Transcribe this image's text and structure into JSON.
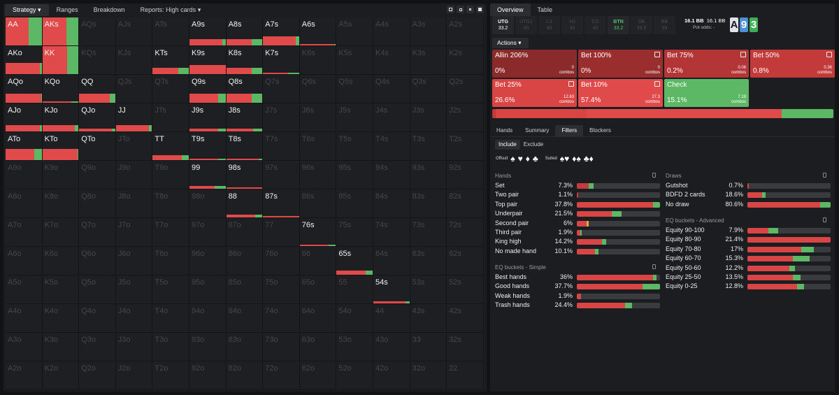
{
  "left_tabs": [
    "Strategy",
    "Ranges",
    "Breakdown",
    "Reports: High cards"
  ],
  "right_tabs": [
    "Overview",
    "Table"
  ],
  "positions": [
    {
      "name": "UTG",
      "stack": "33.2",
      "state": "hero"
    },
    {
      "name": "UTG1",
      "stack": "40",
      "state": "dim"
    },
    {
      "name": "LJ",
      "stack": "40",
      "state": "dim"
    },
    {
      "name": "HJ",
      "stack": "40",
      "state": "dim"
    },
    {
      "name": "CO",
      "stack": "40",
      "state": "dim"
    },
    {
      "name": "BTN",
      "stack": "33.2",
      "state": "btn"
    },
    {
      "name": "SB",
      "stack": "39.5",
      "state": "dim"
    },
    {
      "name": "BB",
      "stack": "39",
      "state": "dim"
    }
  ],
  "effective": {
    "stack1": "16.1 BB",
    "stack2": "16.1 BB",
    "pot_odds": "Pot odds: -"
  },
  "board": [
    {
      "rank": "A",
      "bg": "#dfe3ea"
    },
    {
      "rank": "9",
      "bg": "#4f8fd6"
    },
    {
      "rank": "3",
      "bg": "#3fae54"
    }
  ],
  "actions_label": "Actions",
  "actions": [
    {
      "name": "Allin 206%",
      "pct": "0%",
      "combos": "0",
      "combos_label": "combos",
      "color": "#8a2a2a",
      "icon": false
    },
    {
      "name": "Bet 100%",
      "pct": "0%",
      "combos": "0",
      "combos_label": "combos",
      "color": "#9a2e2e",
      "icon": true
    },
    {
      "name": "Bet 75%",
      "pct": "0.2%",
      "combos": "0.08",
      "combos_label": "combos",
      "color": "#b33535",
      "icon": true
    },
    {
      "name": "Bet 50%",
      "pct": "0.8%",
      "combos": "0.36",
      "combos_label": "combos",
      "color": "#c23a3a",
      "icon": true
    },
    {
      "name": "Bet 25%",
      "pct": "26.6%",
      "combos": "12.63",
      "combos_label": "combos",
      "color": "#d94444",
      "icon": true
    },
    {
      "name": "Bet 10%",
      "pct": "57.4%",
      "combos": "27.3",
      "combos_label": "combos",
      "color": "#e14a4a",
      "icon": true
    },
    {
      "name": "Check",
      "pct": "15.1%",
      "combos": "7.19",
      "combos_label": "combos",
      "color": "#5db866",
      "icon": false
    }
  ],
  "summary_bar": [
    {
      "c": "#b33535",
      "v": 0.2
    },
    {
      "c": "#c23a3a",
      "v": 0.8
    },
    {
      "c": "#d94444",
      "v": 26.6
    },
    {
      "c": "#e14a4a",
      "v": 57.4
    },
    {
      "c": "#5db866",
      "v": 15.1
    }
  ],
  "lower_tabs": [
    "Hands",
    "Summary",
    "Filters",
    "Blockers"
  ],
  "include_exclude": [
    "Include",
    "Exclude"
  ],
  "suit_labels": {
    "offsuit": "Offsuit",
    "suited": "Suited"
  },
  "groups": {
    "hands": "Hands",
    "eq_simple": "EQ buckets - Simple",
    "draws": "Draws",
    "eq_adv": "EQ buckets - Advanced"
  },
  "hands_rows": [
    {
      "label": "Set",
      "value": "7.3%",
      "bar": [
        [
          "#c43b3b",
          0.14
        ],
        [
          "#5db866",
          0.06
        ]
      ]
    },
    {
      "label": "Two pair",
      "value": "1.1%",
      "bar": [
        [
          "#c43b3b",
          0.02
        ]
      ]
    },
    {
      "label": "Top pair",
      "value": "37.8%",
      "bar": [
        [
          "#d94444",
          0.92
        ],
        [
          "#5db866",
          0.08
        ]
      ]
    },
    {
      "label": "Underpair",
      "value": "21.5%",
      "bar": [
        [
          "#d94444",
          0.42
        ],
        [
          "#5db866",
          0.12
        ]
      ]
    },
    {
      "label": "Second pair",
      "value": "6%",
      "bar": [
        [
          "#d94444",
          0.12
        ],
        [
          "#e8a33a",
          0.02
        ]
      ]
    },
    {
      "label": "Third pair",
      "value": "1.9%",
      "bar": [
        [
          "#d94444",
          0.04
        ],
        [
          "#5db866",
          0.02
        ]
      ]
    },
    {
      "label": "King high",
      "value": "14.2%",
      "bar": [
        [
          "#d94444",
          0.3
        ],
        [
          "#5db866",
          0.05
        ]
      ]
    },
    {
      "label": "No made hand",
      "value": "10.1%",
      "bar": [
        [
          "#d94444",
          0.22
        ],
        [
          "#5db866",
          0.04
        ]
      ]
    }
  ],
  "eq_simple_rows": [
    {
      "label": "Best hands",
      "value": "36%",
      "bar": [
        [
          "#d94444",
          0.92
        ],
        [
          "#5db866",
          0.04
        ]
      ]
    },
    {
      "label": "Good hands",
      "value": "37.7%",
      "bar": [
        [
          "#d94444",
          0.79
        ],
        [
          "#5db866",
          0.21
        ]
      ]
    },
    {
      "label": "Weak hands",
      "value": "1.9%",
      "bar": [
        [
          "#d94444",
          0.05
        ]
      ]
    },
    {
      "label": "Trash hands",
      "value": "24.4%",
      "bar": [
        [
          "#d94444",
          0.58
        ],
        [
          "#5db866",
          0.08
        ]
      ]
    }
  ],
  "draws_rows": [
    {
      "label": "Gutshot",
      "value": "0.7%",
      "bar": [
        [
          "#d94444",
          0.02
        ]
      ]
    },
    {
      "label": "BDFD 2 cards",
      "value": "18.6%",
      "bar": [
        [
          "#d94444",
          0.18
        ],
        [
          "#5db866",
          0.04
        ]
      ]
    },
    {
      "label": "No draw",
      "value": "80.6%",
      "bar": [
        [
          "#d94444",
          0.87
        ],
        [
          "#5db866",
          0.13
        ]
      ]
    }
  ],
  "eq_adv_rows": [
    {
      "label": "Equity 90-100",
      "value": "7.9%",
      "bar": [
        [
          "#d94444",
          0.25
        ],
        [
          "#5db866",
          0.12
        ]
      ]
    },
    {
      "label": "Equity 80-90",
      "value": "21.4%",
      "bar": [
        [
          "#d94444",
          1.0
        ]
      ]
    },
    {
      "label": "Equity 70-80",
      "value": "17%",
      "bar": [
        [
          "#d94444",
          0.65
        ],
        [
          "#5db866",
          0.15
        ]
      ]
    },
    {
      "label": "Equity 60-70",
      "value": "15.3%",
      "bar": [
        [
          "#d94444",
          0.55
        ],
        [
          "#5db866",
          0.2
        ]
      ]
    },
    {
      "label": "Equity 50-60",
      "value": "12.2%",
      "bar": [
        [
          "#d94444",
          0.5
        ],
        [
          "#5db866",
          0.07
        ]
      ]
    },
    {
      "label": "Equity 25-50",
      "value": "13.5%",
      "bar": [
        [
          "#d94444",
          0.55
        ],
        [
          "#5db866",
          0.09
        ]
      ]
    },
    {
      "label": "Equity 0-25",
      "value": "12.8%",
      "bar": [
        [
          "#d94444",
          0.6
        ],
        [
          "#5db866",
          0.08
        ]
      ]
    }
  ],
  "matrix": [
    [
      "AA",
      "AKs",
      "AQs",
      "AJs",
      "ATs",
      "A9s",
      "A8s",
      "A7s",
      "A6s",
      "A5s",
      "A4s",
      "A3s",
      "A2s"
    ],
    [
      "AKo",
      "KK",
      "KQs",
      "KJs",
      "KTs",
      "K9s",
      "K8s",
      "K7s",
      "K6s",
      "K5s",
      "K4s",
      "K3s",
      "K2s"
    ],
    [
      "AQo",
      "KQo",
      "QQ",
      "QJs",
      "QTs",
      "Q9s",
      "Q8s",
      "Q7s",
      "Q6s",
      "Q5s",
      "Q4s",
      "Q3s",
      "Q2s"
    ],
    [
      "AJo",
      "KJo",
      "QJo",
      "JJ",
      "JTs",
      "J9s",
      "J8s",
      "J7s",
      "J6s",
      "J5s",
      "J4s",
      "J3s",
      "J2s"
    ],
    [
      "ATo",
      "KTo",
      "QTo",
      "JTo",
      "TT",
      "T9s",
      "T8s",
      "T7s",
      "T6s",
      "T5s",
      "T4s",
      "T3s",
      "T2s"
    ],
    [
      "A9o",
      "K9o",
      "Q9o",
      "J9o",
      "T9o",
      "99",
      "98s",
      "97s",
      "96s",
      "95s",
      "94s",
      "93s",
      "92s"
    ],
    [
      "A8o",
      "K8o",
      "Q8o",
      "J8o",
      "T8o",
      "98o",
      "88",
      "87s",
      "86s",
      "85s",
      "84s",
      "83s",
      "82s"
    ],
    [
      "A7o",
      "K7o",
      "Q7o",
      "J7o",
      "T7o",
      "97o",
      "87o",
      "77",
      "76s",
      "75s",
      "74s",
      "73s",
      "72s"
    ],
    [
      "A6o",
      "K6o",
      "Q6o",
      "J6o",
      "T6o",
      "96o",
      "86o",
      "76o",
      "66",
      "65s",
      "64s",
      "63s",
      "62s"
    ],
    [
      "A5o",
      "K5o",
      "Q5o",
      "J5o",
      "T5o",
      "95o",
      "85o",
      "75o",
      "65o",
      "55",
      "54s",
      "53s",
      "52s"
    ],
    [
      "A4o",
      "K4o",
      "Q4o",
      "J4o",
      "T4o",
      "94o",
      "84o",
      "74o",
      "64o",
      "54o",
      "44",
      "43s",
      "42s"
    ],
    [
      "A3o",
      "K3o",
      "Q3o",
      "J3o",
      "T3o",
      "93o",
      "83o",
      "73o",
      "63o",
      "53o",
      "43o",
      "33",
      "32s"
    ],
    [
      "A2o",
      "K2o",
      "Q2o",
      "J2o",
      "T2o",
      "92o",
      "82o",
      "72o",
      "62o",
      "52o",
      "42o",
      "32o",
      "22"
    ]
  ],
  "cell_freqs": {
    "AA": {
      "h": 1.0,
      "r": 0.63,
      "g": 0.37
    },
    "AKs": {
      "h": 1.0,
      "r": 0.66,
      "g": 0.34
    },
    "A9s": {
      "h": 0.22,
      "r": 0.92,
      "g": 0.08
    },
    "A8s": {
      "h": 0.22,
      "r": 0.7,
      "g": 0.3
    },
    "A7s": {
      "h": 0.32,
      "r": 0.9,
      "g": 0.1
    },
    "A6s": {
      "h": 0.05,
      "r": 0.95,
      "g": 0.05
    },
    "AKo": {
      "h": 0.4,
      "r": 0.95,
      "g": 0.05
    },
    "KK": {
      "h": 1.0,
      "r": 0.68,
      "g": 0.32
    },
    "KTs": {
      "h": 0.22,
      "r": 0.7,
      "g": 0.3
    },
    "K9s": {
      "h": 0.32,
      "r": 1.0,
      "g": 0.0
    },
    "K8s": {
      "h": 0.22,
      "r": 0.7,
      "g": 0.3
    },
    "K7s": {
      "h": 0.05,
      "r": 0.7,
      "g": 0.3
    },
    "AQo": {
      "h": 0.32,
      "r": 0.98,
      "g": 0.02
    },
    "KQo": {
      "h": 0.05,
      "r": 0.8,
      "g": 0.2
    },
    "QQ": {
      "h": 0.32,
      "r": 0.85,
      "g": 0.15
    },
    "Q9s": {
      "h": 0.32,
      "r": 0.8,
      "g": 0.2
    },
    "Q8s": {
      "h": 0.32,
      "r": 0.7,
      "g": 0.3
    },
    "AJo": {
      "h": 0.22,
      "r": 0.95,
      "g": 0.05
    },
    "KJo": {
      "h": 0.22,
      "r": 0.9,
      "g": 0.1
    },
    "QJo": {
      "h": 0.1,
      "r": 0.9,
      "g": 0.1
    },
    "JJ": {
      "h": 0.22,
      "r": 0.92,
      "g": 0.08
    },
    "J9s": {
      "h": 0.1,
      "r": 0.8,
      "g": 0.2
    },
    "J8s": {
      "h": 0.1,
      "r": 0.75,
      "g": 0.25
    },
    "ATo": {
      "h": 0.4,
      "r": 0.8,
      "g": 0.2
    },
    "KTo": {
      "h": 0.4,
      "r": 0.98,
      "g": 0.02
    },
    "TT": {
      "h": 0.18,
      "r": 0.8,
      "g": 0.2
    },
    "T9s": {
      "h": 0.05,
      "r": 0.8,
      "g": 0.2
    },
    "T8s": {
      "h": 0.05,
      "r": 0.9,
      "g": 0.1
    },
    "99": {
      "h": 0.1,
      "r": 0.7,
      "g": 0.3
    },
    "98s": {
      "h": 0.05,
      "r": 1.0,
      "g": 0.0
    },
    "88": {
      "h": 0.1,
      "r": 0.8,
      "g": 0.2
    },
    "87s": {
      "h": 0.05,
      "r": 1.0,
      "g": 0.0
    },
    "76s": {
      "h": 0.05,
      "r": 0.8,
      "g": 0.2
    },
    "65s": {
      "h": 0.15,
      "r": 0.8,
      "g": 0.2
    },
    "54s": {
      "h": 0.07,
      "r": 0.9,
      "g": 0.1
    }
  },
  "active_cells": [
    "AA",
    "AKs",
    "A9s",
    "A8s",
    "A7s",
    "A6s",
    "AKo",
    "KK",
    "KTs",
    "K9s",
    "K8s",
    "K7s",
    "AQo",
    "KQo",
    "QQ",
    "Q9s",
    "Q8s",
    "AJo",
    "KJo",
    "QJo",
    "JJ",
    "J9s",
    "J8s",
    "ATo",
    "KTo",
    "QTo",
    "TT",
    "T9s",
    "T8s",
    "99",
    "98s",
    "88",
    "87s",
    "76s",
    "65s",
    "54s"
  ],
  "colors": {
    "red": "#e14a4a",
    "green": "#5db866",
    "panel": "#1c1d20"
  }
}
